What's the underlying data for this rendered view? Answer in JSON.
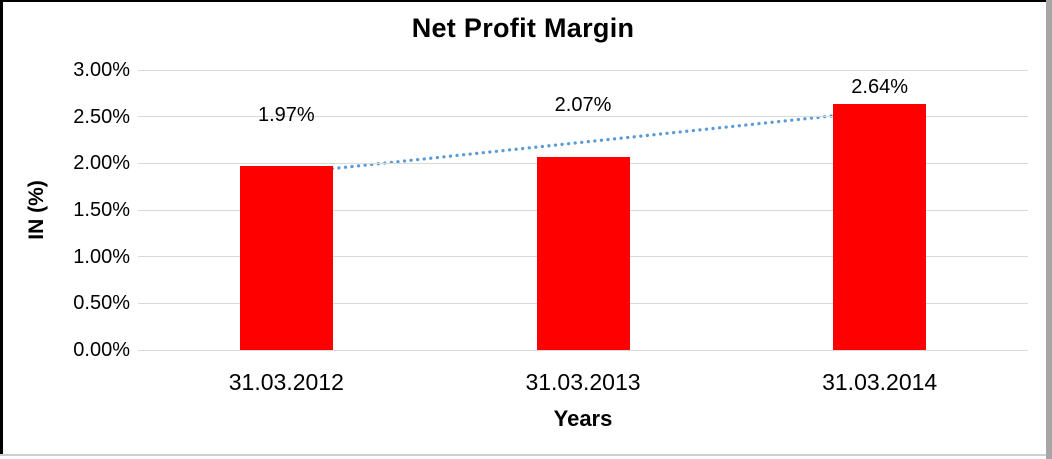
{
  "chart_data": {
    "type": "bar",
    "title": "Net Profit Margin",
    "xlabel": "Years",
    "ylabel": "IN (%)",
    "categories": [
      "31.03.2012",
      "31.03.2013",
      "31.03.2014"
    ],
    "values": [
      1.97,
      2.07,
      2.64
    ],
    "data_labels": [
      "1.97%",
      "2.07%",
      "2.64%"
    ],
    "ylim": [
      0,
      3
    ],
    "ytick_step": 0.5,
    "ytick_labels": [
      "0.00%",
      "0.50%",
      "1.00%",
      "1.50%",
      "2.00%",
      "2.50%",
      "3.00%"
    ],
    "grid": "horizontal-gridlines",
    "legend": "none",
    "bar_color": "#FF0000",
    "gridline_color": "#D9D9D9",
    "trendline": {
      "type": "linear",
      "style": "dotted",
      "color": "#5B9BD5"
    }
  }
}
